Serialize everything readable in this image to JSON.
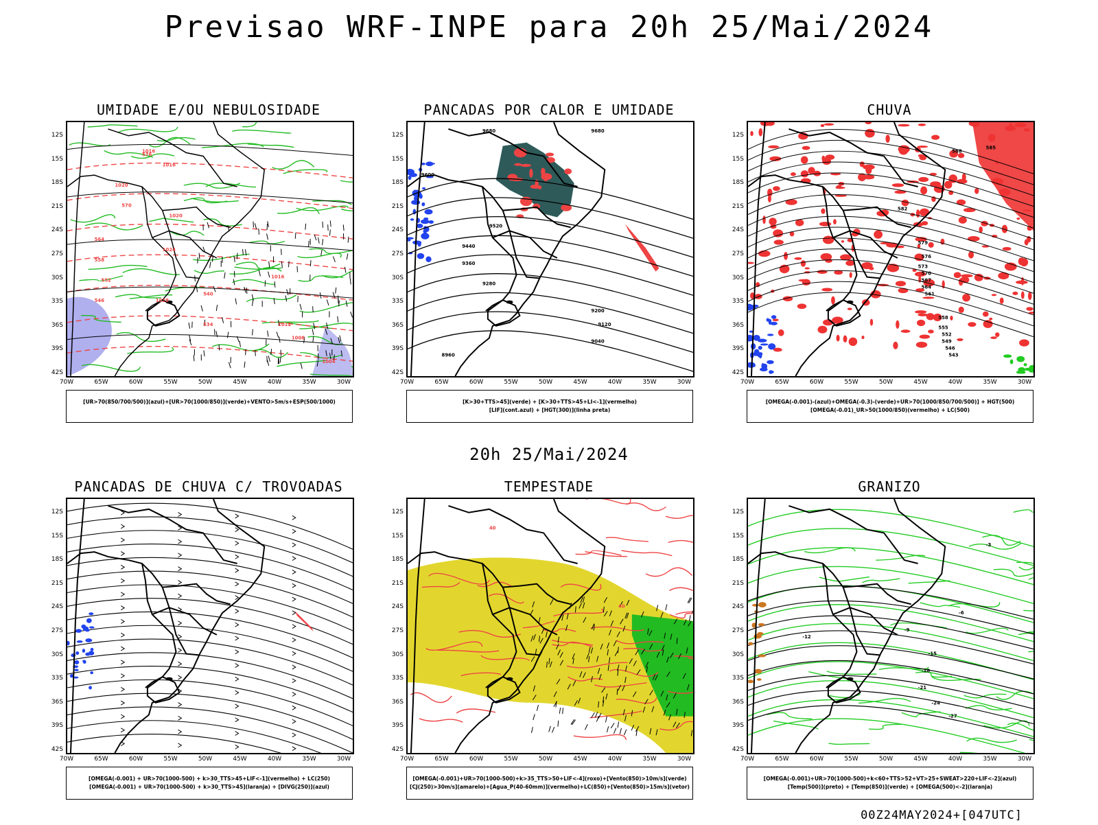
{
  "header": {
    "title": "Previsao WRF-INPE  para 20h 25/Mai/2024"
  },
  "middle": {
    "subtitle": "20h 25/Mai/2024"
  },
  "footer": {
    "stamp": "00Z24MAY2024+[047UTC]"
  },
  "axes": {
    "lat_labels": [
      "12S",
      "15S",
      "18S",
      "21S",
      "24S",
      "27S",
      "30S",
      "33S",
      "36S",
      "39S",
      "42S"
    ],
    "lon_labels": [
      "70W",
      "65W",
      "60W",
      "55W",
      "50W",
      "45W",
      "40W",
      "35W",
      "30W"
    ]
  },
  "panels": [
    {
      "title": "UMIDADE E/OU NEBULOSIDADE",
      "legend": [
        "[UR>70(850/700/500)](azul)+[UR>70(1000/850)](verde)+VENTO>5m/s+ESP(500/1000)"
      ],
      "contour_labels": [
        "1016",
        "1016",
        "1020",
        "1020",
        "1024",
        "1028",
        "1016",
        "1012",
        "1008",
        "1004",
        "576",
        "570",
        "564",
        "558",
        "552",
        "546",
        "540",
        "534"
      ],
      "colors": {
        "blue": "#8f8fe8",
        "green": "#22bb22",
        "red": "#ee4444"
      }
    },
    {
      "title": "PANCADAS POR CALOR E UMIDADE",
      "legend": [
        "[K>30+TTS>45](verde) + [K>30+TTS>45+LI<-1](vermelho)",
        "[LIF](cont.azul) + [HGT(300)](linha preta)"
      ],
      "contour_labels": [
        "9680",
        "9680",
        "9600",
        "9520",
        "9440",
        "9360",
        "9280",
        "9200",
        "9120",
        "9040",
        "8960"
      ],
      "colors": {
        "teal": "#2f5a5a",
        "red": "#ee4444",
        "blue": "#2244ee"
      }
    },
    {
      "title": "CHUVA",
      "legend": [
        "[OMEGA(-0.001)-(azul)+OMEGA(-0.3)-(verde)+UR>70(1000/850/700/500)] + HGT(500)",
        "[OMEGA(-0.01)_UR>50(1000/850)(vermelho) + LC(500)"
      ],
      "contour_labels": [
        "588",
        "585",
        "582",
        "579",
        "576",
        "573",
        "570",
        "567",
        "564",
        "561",
        "558",
        "555",
        "552",
        "549",
        "546",
        "543"
      ],
      "colors": {
        "red": "#ee3333",
        "blue": "#2244ee",
        "green": "#22cc22"
      }
    },
    {
      "title": "PANCADAS DE CHUVA C/ TROVOADAS",
      "legend": [
        "[OMEGA(-0.001) + UR>70(1000-500) + k>30_TTS>45+LIF<-1](vermelho) + LC(250)",
        "[OMEGA(-0.001) + UR>70(1000-500) + k>30_TTS>45](laranja) + [DIVG(250)](azul)"
      ],
      "contour_labels": [],
      "colors": {
        "blue": "#2244ee",
        "red": "#ee4444"
      }
    },
    {
      "title": "TEMPESTADE",
      "legend": [
        "[OMEGA(-0.001)+UR>70(1000-500)+k>35_TTS>50+LIF<-4](roxo)+[Vento(850)>10m/s](verde)",
        "[CJ(250)>30m/s](amarelo)+[Agua_P(40-60mm)](vermelho)+LC(850)+[Vento(850)>15m/s](vetor)"
      ],
      "contour_labels": [
        "40",
        "40"
      ],
      "colors": {
        "yellow": "#e2d62e",
        "green": "#22bb22",
        "red": "#ee4444"
      }
    },
    {
      "title": "GRANIZO",
      "legend": [
        "[OMEGA(-0.001)+UR>70(1000-500)+k<60+TTS>52+VT>25+SWEAT>220+LIF<-2](azul)",
        "[Temp(500)](preto) + [Temp(850)](verde) + [OMEGA(500)<-2](laranja)"
      ],
      "contour_labels": [
        "-3",
        "-6",
        "-9",
        "-12",
        "-15",
        "-18",
        "-21",
        "-24",
        "-27"
      ],
      "colors": {
        "green": "#22cc22",
        "orange": "#cc7722"
      }
    }
  ]
}
